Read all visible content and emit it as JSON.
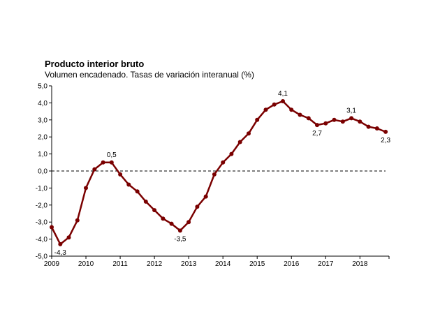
{
  "chart_data": {
    "type": "line",
    "title": "Producto interior bruto",
    "subtitle": "Volumen encadenado. Tasas de variación interanual (%)",
    "ylim": [
      -5.0,
      5.0
    ],
    "yticks": [
      5.0,
      4.0,
      3.0,
      2.0,
      1.0,
      0.0,
      -1.0,
      -2.0,
      -3.0,
      -4.0,
      -5.0
    ],
    "ytick_labels": [
      "5,0",
      "4,0",
      "3,0",
      "2,0",
      "1,0",
      "0,0",
      "-1,0",
      "-2,0",
      "-3,0",
      "-4,0",
      "-5,0"
    ],
    "xlim": [
      2009.0,
      2018.85
    ],
    "xticks": [
      2009,
      2010,
      2011,
      2012,
      2013,
      2014,
      2015,
      2016,
      2017,
      2018
    ],
    "xtick_labels": [
      "2009",
      "2010",
      "2011",
      "2012",
      "2013",
      "2014",
      "2015",
      "2016",
      "2017",
      "2018"
    ],
    "reference_line": {
      "y": 0.0,
      "style": "dashed"
    },
    "color": "#7a0000",
    "grid": false,
    "series": [
      {
        "x": [
          2009.0,
          2009.25,
          2009.5,
          2009.75,
          2010.0,
          2010.25,
          2010.5,
          2010.75,
          2011.0,
          2011.25,
          2011.5,
          2011.75,
          2012.0,
          2012.25,
          2012.5,
          2012.75,
          2013.0,
          2013.25,
          2013.5,
          2013.75,
          2014.0,
          2014.25,
          2014.5,
          2014.75,
          2015.0,
          2015.25,
          2015.5,
          2015.75,
          2016.0,
          2016.25,
          2016.5,
          2016.75,
          2017.0,
          2017.25,
          2017.5,
          2017.75,
          2018.0,
          2018.25,
          2018.5,
          2018.75
        ],
        "values": [
          -3.3,
          -4.3,
          -3.9,
          -2.9,
          -1.0,
          0.1,
          0.5,
          0.5,
          -0.2,
          -0.8,
          -1.2,
          -1.8,
          -2.3,
          -2.8,
          -3.1,
          -3.5,
          -3.0,
          -2.1,
          -1.5,
          -0.2,
          0.5,
          1.0,
          1.7,
          2.2,
          3.0,
          3.6,
          3.9,
          4.1,
          3.6,
          3.3,
          3.1,
          2.7,
          2.8,
          3.0,
          2.9,
          3.1,
          2.9,
          2.6,
          2.5,
          2.3
        ]
      }
    ],
    "annotations": [
      {
        "text": "-4,3",
        "x": 2009.25,
        "y": -4.3,
        "pos": "below"
      },
      {
        "text": "0,5",
        "x": 2010.75,
        "y": 0.5,
        "pos": "above"
      },
      {
        "text": "-3,5",
        "x": 2012.75,
        "y": -3.5,
        "pos": "below"
      },
      {
        "text": "4,1",
        "x": 2015.75,
        "y": 4.1,
        "pos": "above"
      },
      {
        "text": "2,7",
        "x": 2016.75,
        "y": 2.7,
        "pos": "below"
      },
      {
        "text": "3,1",
        "x": 2017.75,
        "y": 3.1,
        "pos": "above"
      },
      {
        "text": "2,3",
        "x": 2018.75,
        "y": 2.3,
        "pos": "below"
      }
    ]
  }
}
